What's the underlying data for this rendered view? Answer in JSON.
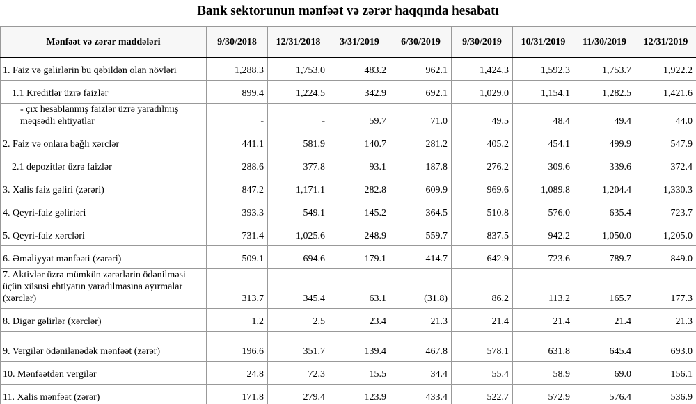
{
  "title": "Bank sektorunun mənfəət və zərər haqqında hesabatı",
  "table": {
    "header": [
      "Mənfəət və zərər maddələri",
      "9/30/2018",
      "12/31/2018",
      "3/31/2019",
      "6/30/2019",
      "9/30/2019",
      "10/31/2019",
      "11/30/2019",
      "12/31/2019"
    ],
    "rows": [
      {
        "label": "1. Faiz və gəlirlərin bu qəbildən olan növləri",
        "level": 0,
        "values": [
          "1,288.3",
          "1,753.0",
          "483.2",
          "962.1",
          "1,424.3",
          "1,592.3",
          "1,753.7",
          "1,922.2"
        ]
      },
      {
        "label": "1.1 Kreditlər üzrə faizlər",
        "level": 1,
        "values": [
          "899.4",
          "1,224.5",
          "342.9",
          "692.1",
          "1,029.0",
          "1,154.1",
          "1,282.5",
          "1,421.6"
        ]
      },
      {
        "label": "-  çıx hesablanmış faizlər üzrə yaradılmış məqsədli ehtiyatlar",
        "level": 2,
        "values": [
          "-",
          "-",
          "59.7",
          "71.0",
          "49.5",
          "48.4",
          "49.4",
          "44.0"
        ]
      },
      {
        "label": "2. Faiz və onlara bağlı xərclər",
        "level": 0,
        "values": [
          "441.1",
          "581.9",
          "140.7",
          "281.2",
          "405.2",
          "454.1",
          "499.9",
          "547.9"
        ]
      },
      {
        "label": "2.1 depozitlər üzrə faizlər",
        "level": 1,
        "values": [
          "288.6",
          "377.8",
          "93.1",
          "187.8",
          "276.2",
          "309.6",
          "339.6",
          "372.4"
        ]
      },
      {
        "label": "3. Xalis faiz gəliri (zərəri)",
        "level": 0,
        "values": [
          "847.2",
          "1,171.1",
          "282.8",
          "609.9",
          "969.6",
          "1,089.8",
          "1,204.4",
          "1,330.3"
        ]
      },
      {
        "label": "4. Qeyri-faiz gəlirləri",
        "level": 0,
        "values": [
          "393.3",
          "549.1",
          "145.2",
          "364.5",
          "510.8",
          "576.0",
          "635.4",
          "723.7"
        ]
      },
      {
        "label": "5. Qeyri-faiz xərcləri",
        "level": 0,
        "values": [
          "731.4",
          "1,025.6",
          "248.9",
          "559.7",
          "837.5",
          "942.2",
          "1,050.0",
          "1,205.0"
        ]
      },
      {
        "label": "6. Əməliyyat mənfəəti (zərəri)",
        "level": 0,
        "values": [
          "509.1",
          "694.6",
          "179.1",
          "414.7",
          "642.9",
          "723.6",
          "789.7",
          "849.0"
        ]
      },
      {
        "label": "7. Aktivlər üzrə mümkün zərərlərin ödənilməsi üçün xüsusi ehtiyatın yaradılmasına ayırmalar (xərclər)",
        "level": 0,
        "values": [
          "313.7",
          "345.4",
          "63.1",
          "(31.8)",
          "86.2",
          "113.2",
          "165.7",
          "177.3"
        ]
      },
      {
        "label": "8. Digər gəlirlər (xərclər)",
        "level": 0,
        "values": [
          "1.2",
          "2.5",
          "23.4",
          "21.3",
          "21.4",
          "21.4",
          "21.4",
          "21.3"
        ]
      },
      {
        "label": "9. Vergilər ödənilənədək mənfəət (zərər)",
        "level": 0,
        "values": [
          "196.6",
          "351.7",
          "139.4",
          "467.8",
          "578.1",
          "631.8",
          "645.4",
          "693.0"
        ]
      },
      {
        "label": "10. Mənfəətdən vergilər",
        "level": 0,
        "values": [
          "24.8",
          "72.3",
          "15.5",
          "34.4",
          "55.4",
          "58.9",
          "69.0",
          "156.1"
        ]
      },
      {
        "label": "11. Xalis mənfəət (zərər)",
        "level": 0,
        "values": [
          "171.8",
          "279.4",
          "123.9",
          "433.4",
          "522.7",
          "572.9",
          "576.4",
          "536.9"
        ]
      }
    ]
  }
}
